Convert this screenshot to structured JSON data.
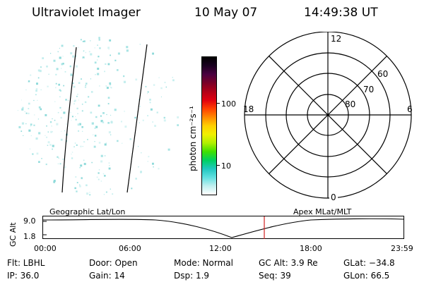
{
  "header": {
    "instrument": "Ultraviolet Imager",
    "date": "10 May 07",
    "time": "14:49:38 UT"
  },
  "colorbar": {
    "unit_label": "photon cm⁻²s⁻¹",
    "tick_high": "100",
    "tick_low": "10",
    "colors": [
      "#000000",
      "#1a0020",
      "#4a0040",
      "#7a0028",
      "#b00018",
      "#e00010",
      "#ff4000",
      "#ff8a00",
      "#ffd000",
      "#f0f000",
      "#b0f000",
      "#40e000",
      "#00d060",
      "#20c8c0",
      "#60e0e0",
      "#c0f0f0",
      "#ffffff"
    ]
  },
  "polar_plot": {
    "label_top": "12",
    "label_bottom": "0",
    "label_left": "18",
    "label_right": "6",
    "lat_60": "60",
    "lat_70": "70",
    "lat_80": "80"
  },
  "timeline": {
    "yaxis_label": "GC Alt",
    "ytick_top": "9.0",
    "ytick_bottom": "1.8",
    "left_label": "Geographic Lat/Lon",
    "right_label": "Apex MLat/MLT",
    "xticks": [
      "00:00",
      "06:00",
      "12:00",
      "18:00",
      "23:59"
    ],
    "marker_color": "#d02020"
  },
  "status": {
    "flt": "Flt: LBHL",
    "ip": "IP: 36.0",
    "door": "Door: Open",
    "gain": "Gain: 14",
    "mode": "Mode: Normal",
    "dsp": "Dsp:    1.9",
    "gc_alt": "GC Alt: 3.9 Re",
    "seq": "Seq: 39",
    "glat": "GLat:  −34.8",
    "glon": "GLon:  66.5"
  }
}
